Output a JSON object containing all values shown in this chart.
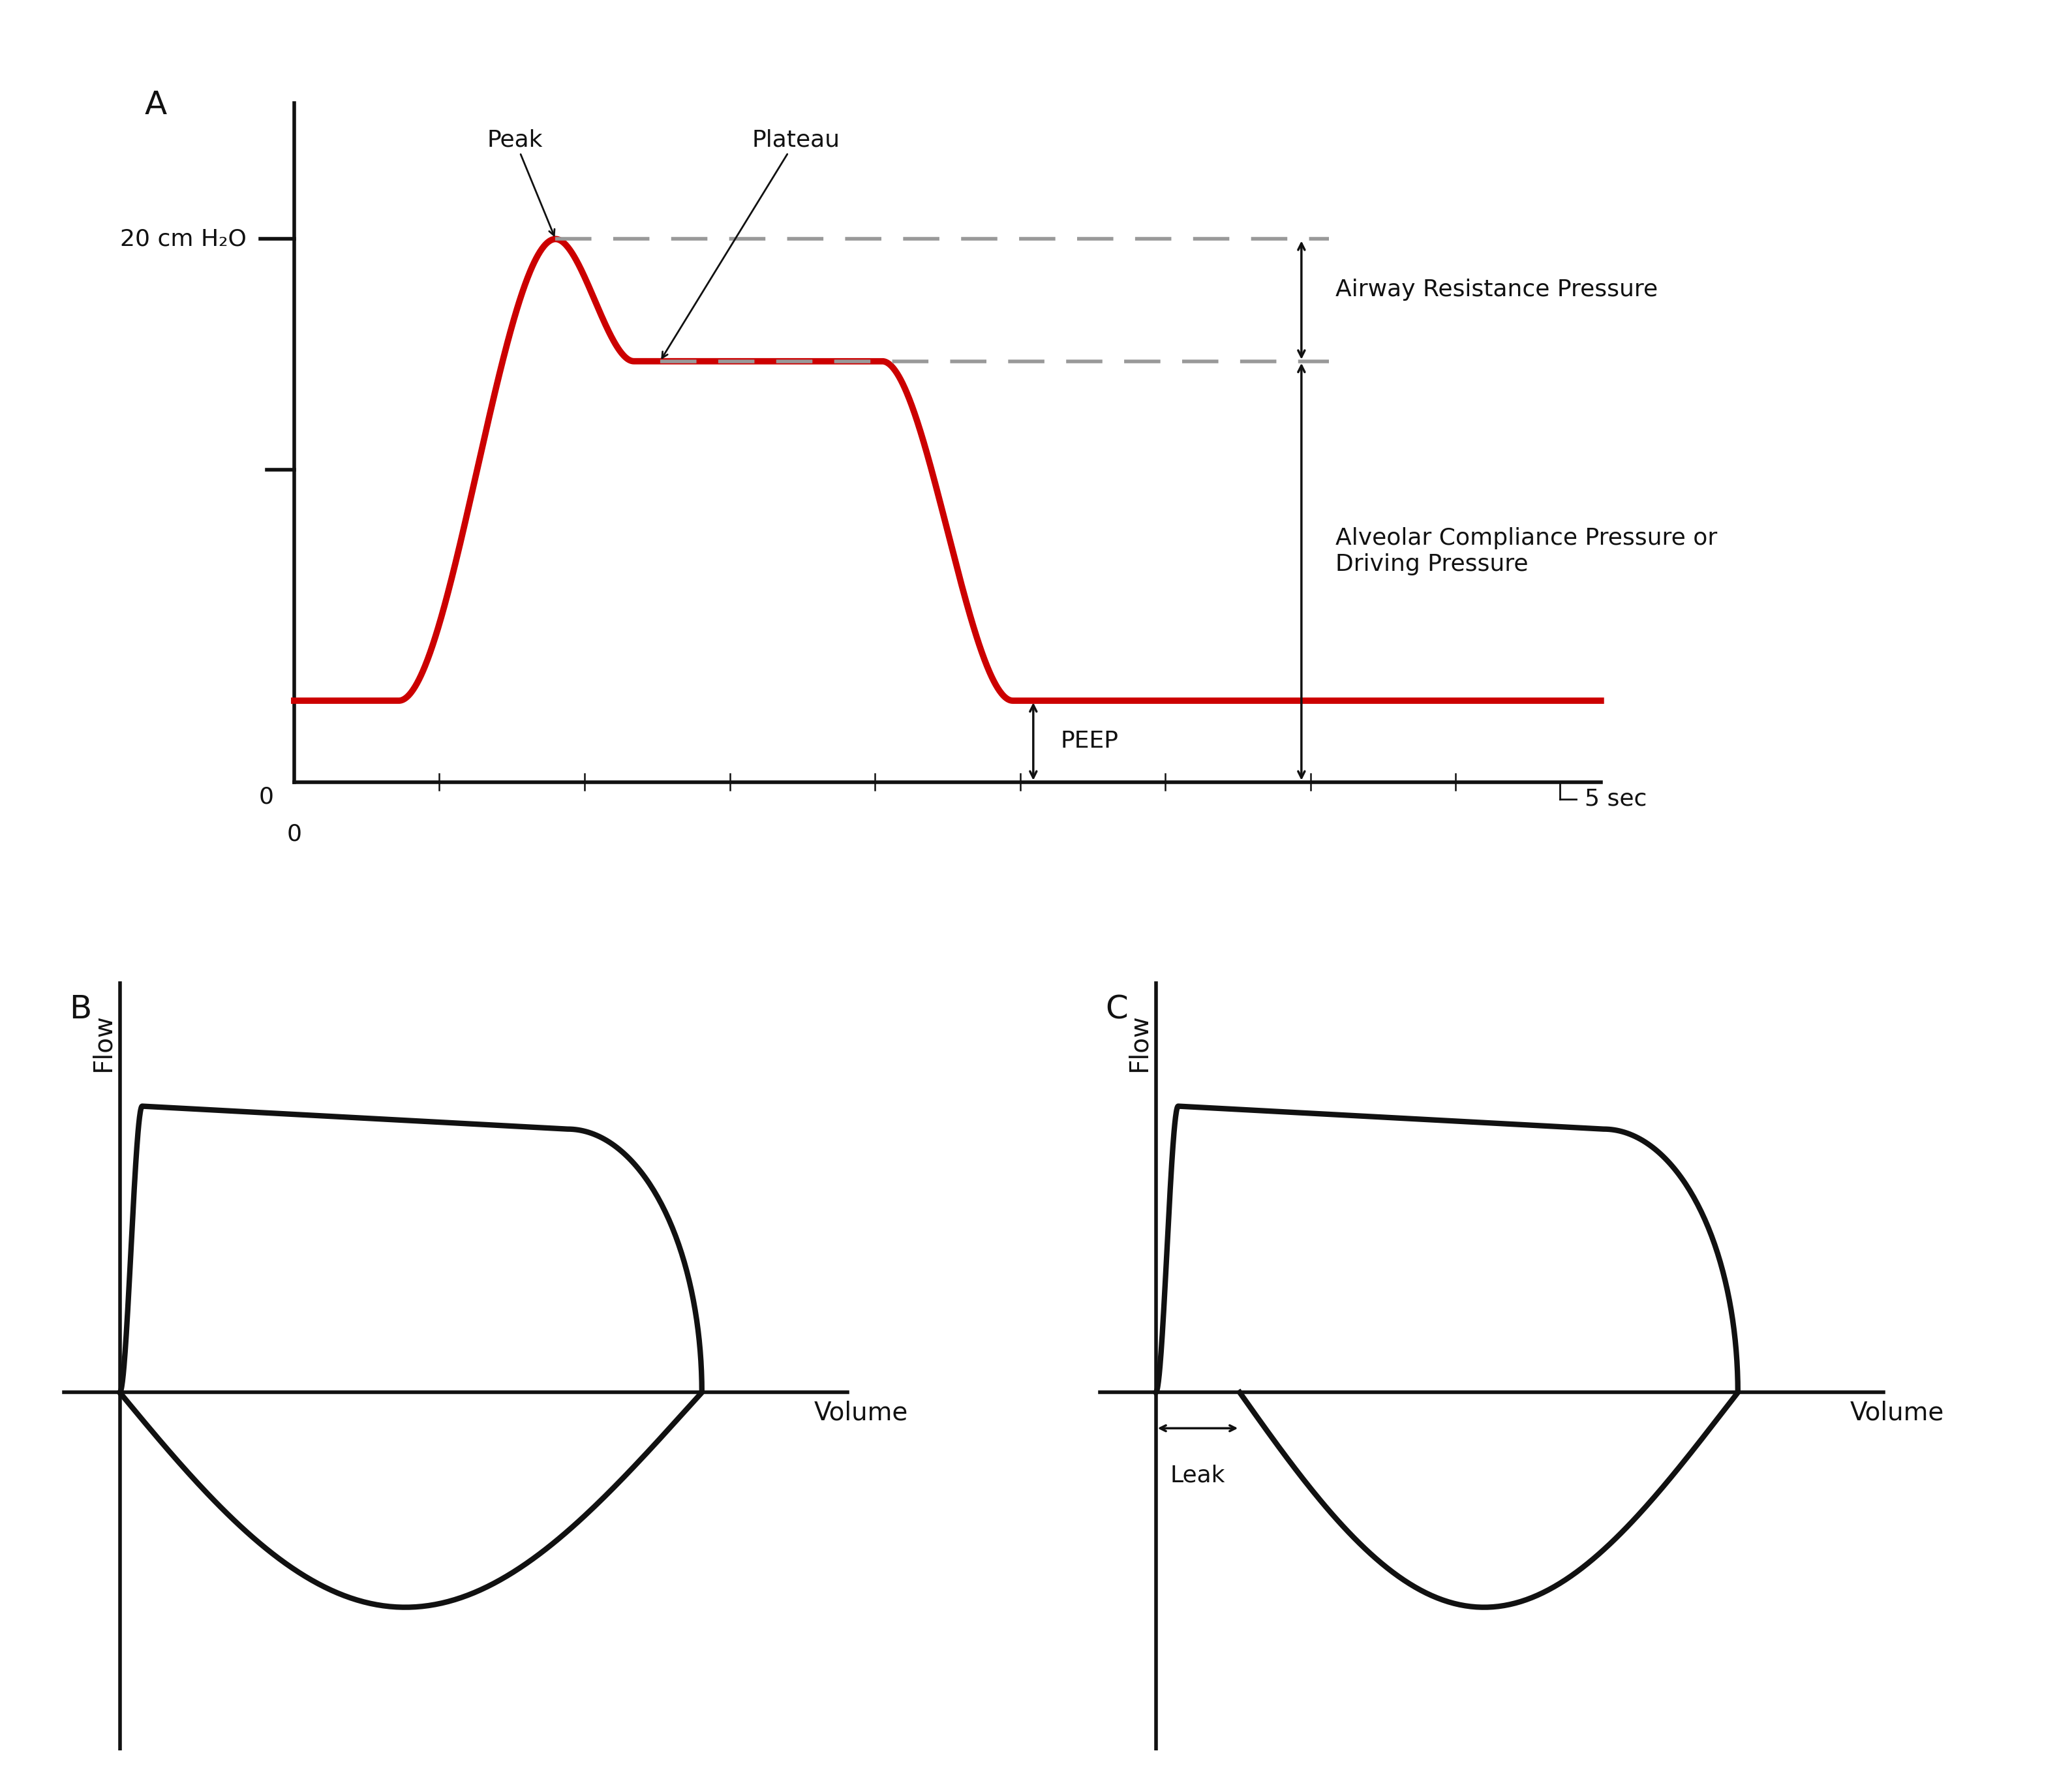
{
  "bg_color": "#ffffff",
  "line_color_red": "#cc0000",
  "line_color_black": "#111111",
  "dashed_color": "#999999",
  "label_A": "A",
  "label_B": "B",
  "label_C": "C",
  "text_20cmH2O": "20 cm H₂O",
  "text_peak": "Peak",
  "text_plateau": "Plateau",
  "text_airway_resistance": "Airway Resistance Pressure",
  "text_alveolar": "Alveolar Compliance Pressure or\nDriving Pressure",
  "text_peep": "PEEP",
  "text_0_x": "0",
  "text_5sec": "5 sec",
  "text_0_y": "0",
  "text_flow_B": "Flow",
  "text_volume_B": "Volume",
  "text_flow_C": "Flow",
  "text_volume_C": "Volume",
  "text_leak": "Leak",
  "font_size_label": 36,
  "font_size_axis": 28,
  "font_size_annot": 26,
  "font_size_tick": 26,
  "lw_red": 7,
  "lw_black": 4,
  "lw_loop": 6,
  "lw_dashed": 4,
  "peep": 1.2,
  "peak": 8.0,
  "plateau": 6.2
}
